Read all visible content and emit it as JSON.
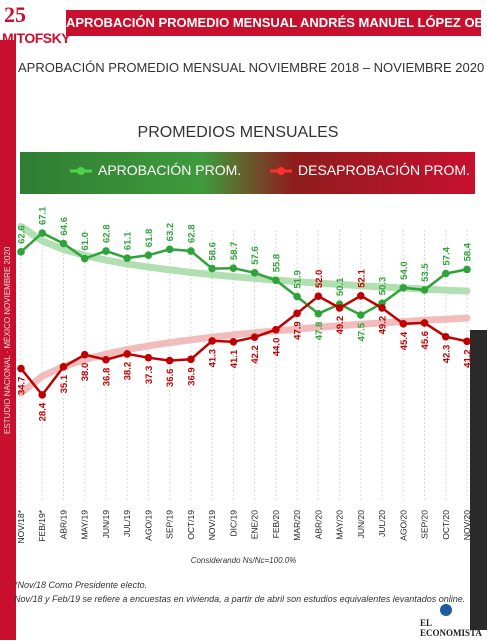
{
  "logo": {
    "number": "25",
    "word": "MITOFSKY"
  },
  "header": {
    "title": "APROBACIÓN PROMEDIO MENSUAL ANDRÉS MANUEL LÓPEZ OBRADOR"
  },
  "side_strip": {
    "text": "ESTUDIO NACIONAL · MÉXICO NOVIEMBRE 2020"
  },
  "right_strip": {
    "text": ""
  },
  "subtitle": "APROBACIÓN PROMEDIO MENSUAL NOVIEMBRE 2018 – NOVIEMBRE 2020",
  "colors": {
    "approve": "#2fa33a",
    "disapprove": "#c00000",
    "brand_red": "#c8102e"
  },
  "chart_data": {
    "type": "line",
    "title": "PROMEDIOS MENSUALES",
    "categories": [
      "NOV/18*",
      "FEB/19*",
      "ABR/19",
      "MAY/19",
      "JUN/19",
      "JUL/19",
      "AGO/19",
      "SEP/19",
      "OCT/19",
      "NOV/19",
      "DIC/19",
      "ENE/20",
      "FEB/20",
      "MAR/20",
      "ABR/20",
      "MAY/20",
      "JUN/20",
      "JUL/20",
      "AGO/20",
      "SEP/20",
      "OCT/20",
      "NOV/20"
    ],
    "series": [
      {
        "name": "APROBACIÓN PROM.",
        "color": "#2fa33a",
        "values": [
          62.6,
          67.1,
          64.6,
          61.0,
          62.8,
          61.1,
          61.8,
          63.2,
          62.8,
          58.6,
          58.7,
          57.6,
          55.8,
          51.9,
          47.8,
          50.1,
          47.5,
          50.3,
          54.0,
          53.5,
          57.4,
          58.4
        ]
      },
      {
        "name": "DESAPROBACIÓN PROM.",
        "color": "#c00000",
        "values": [
          34.7,
          28.4,
          35.1,
          38.0,
          36.8,
          38.2,
          37.3,
          36.6,
          36.9,
          41.3,
          41.1,
          42.2,
          44.0,
          47.9,
          52.0,
          49.2,
          52.1,
          49.2,
          45.4,
          45.6,
          42.3,
          41.2
        ]
      }
    ],
    "ylim": [
      20,
      75
    ],
    "legend": "top",
    "trendlines": true,
    "note": "Considerando Ns/Nc=100.0%"
  },
  "footnotes": [
    "*Nov/18 Como Presidente electo.",
    "Nov/18 y Feb/19 se refiere a encuestas en vivienda, a partir de abril son estudios equivalentes levantados online."
  ],
  "brand": "EL ECONOMISTA"
}
